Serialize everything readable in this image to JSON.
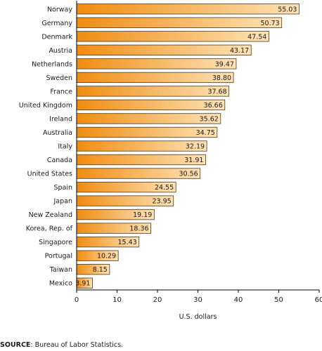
{
  "chart_data": {
    "type": "bar",
    "orientation": "horizontal",
    "categories": [
      "Norway",
      "Germany",
      "Denmark",
      "Austria",
      "Netherlands",
      "Sweden",
      "France",
      "United Kingdom",
      "Ireland",
      "Australia",
      "Italy",
      "Canada",
      "United States",
      "Spain",
      "Japan",
      "New Zealand",
      "Korea, Rep. of",
      "Singapore",
      "Portugal",
      "Taiwan",
      "Mexico"
    ],
    "values": [
      55.03,
      50.73,
      47.54,
      43.17,
      39.47,
      38.8,
      37.68,
      36.66,
      35.62,
      34.75,
      32.19,
      31.91,
      30.56,
      24.55,
      23.95,
      19.19,
      18.36,
      15.43,
      10.29,
      8.15,
      3.91
    ],
    "value_labels": [
      "55.03",
      "50.73",
      "47.54",
      "43.17",
      "39.47",
      "38.80",
      "37.68",
      "36.66",
      "35.62",
      "34.75",
      "32.19",
      "31.91",
      "30.56",
      "24.55",
      "23.95",
      "19.19",
      "18.36",
      "15.43",
      "10.29",
      "8.15",
      "3.91"
    ],
    "xlabel": "U.S. dollars",
    "ylabel": "",
    "xlim": [
      0,
      60
    ],
    "xticks": [
      0,
      10,
      20,
      30,
      40,
      50,
      60
    ],
    "grid": false,
    "legend": "none",
    "colors": {
      "bar_dark": "#f08c10",
      "bar_light": "#fde3b8",
      "bar_border": "#4a3a22",
      "axis": "#000000"
    }
  },
  "source": {
    "label": "SOURCE",
    "text": ": Bureau of Labor Statistics."
  }
}
